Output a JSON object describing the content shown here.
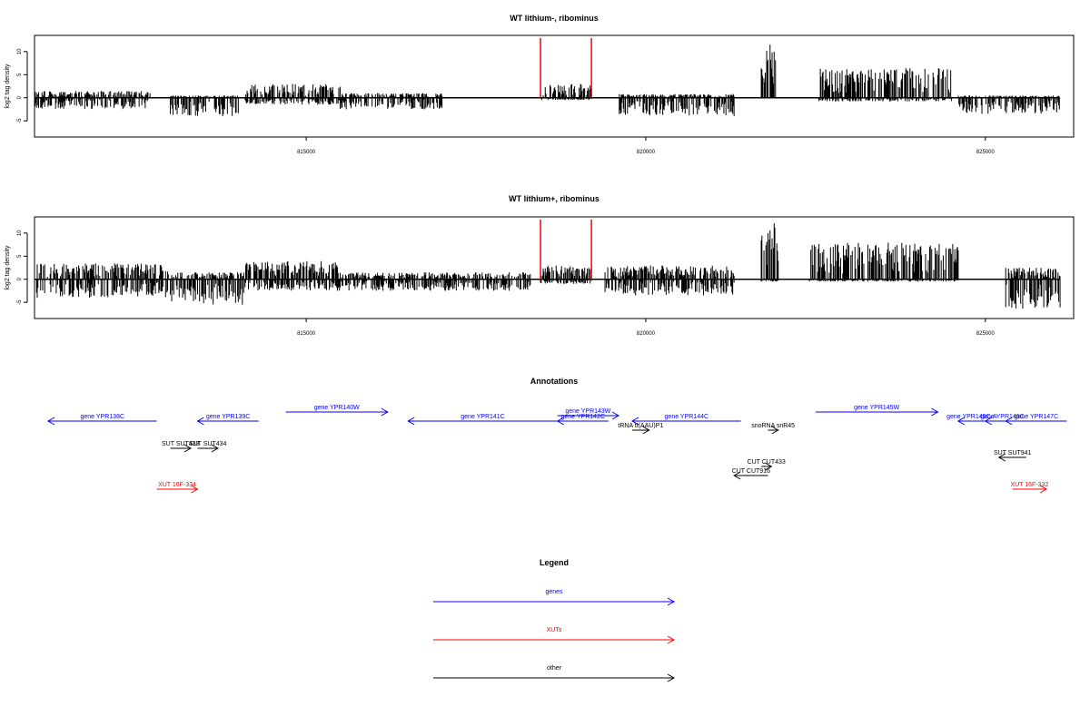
{
  "colors": {
    "gene": "#0000ff",
    "xut": "#ff0000",
    "other": "#000000",
    "marker": "#ff0000",
    "signal": "#000000"
  },
  "chart_data": [
    {
      "type": "bar",
      "title": "WT lithium-, ribominus",
      "ylabel": "log2 tag density",
      "xlim": [
        811000,
        826300
      ],
      "ylim": [
        -8.5,
        13.5
      ],
      "yticks": [
        -5,
        0,
        5,
        10
      ],
      "xticks": [
        815000,
        820000,
        825000
      ],
      "baseline": [
        811000,
        826100
      ],
      "markers_x": [
        818450,
        819200
      ],
      "segments": [
        {
          "start": 811000,
          "end": 812700,
          "pos": 1.5,
          "neg": 2.5,
          "seed": 11
        },
        {
          "start": 813000,
          "end": 814000,
          "pos": 0.5,
          "neg": 4.0,
          "seed": 12
        },
        {
          "start": 814100,
          "end": 815500,
          "pos": 3.0,
          "neg": 1.5,
          "seed": 13
        },
        {
          "start": 815500,
          "end": 817000,
          "pos": 1.0,
          "neg": 2.5,
          "seed": 14
        },
        {
          "start": 818450,
          "end": 819200,
          "pos": 3.0,
          "neg": 0.5,
          "seed": 15
        },
        {
          "start": 819600,
          "end": 821300,
          "pos": 0.8,
          "neg": 4.0,
          "seed": 16
        },
        {
          "start": 821700,
          "end": 821920,
          "pos": 11.5,
          "neg": 0,
          "seed": 17
        },
        {
          "start": 822550,
          "end": 824500,
          "pos": 6.5,
          "neg": 0.8,
          "seed": 18
        },
        {
          "start": 824600,
          "end": 826100,
          "pos": 0.5,
          "neg": 3.5,
          "seed": 19
        }
      ]
    },
    {
      "type": "bar",
      "title": "WT lithium+, ribominus",
      "ylabel": "log2 tag density",
      "xlim": [
        811000,
        826300
      ],
      "ylim": [
        -8.5,
        13.5
      ],
      "yticks": [
        -5,
        0,
        5,
        10
      ],
      "xticks": [
        815000,
        820000,
        825000
      ],
      "baseline": [
        811000,
        826100
      ],
      "markers_x": [
        818450,
        819200
      ],
      "segments": [
        {
          "start": 811000,
          "end": 813000,
          "pos": 3.5,
          "neg": 4.0,
          "seed": 21
        },
        {
          "start": 813000,
          "end": 814100,
          "pos": 1.5,
          "neg": 5.5,
          "seed": 22
        },
        {
          "start": 814100,
          "end": 815500,
          "pos": 4.0,
          "neg": 2.5,
          "seed": 23
        },
        {
          "start": 815500,
          "end": 818300,
          "pos": 1.5,
          "neg": 2.5,
          "seed": 24
        },
        {
          "start": 818450,
          "end": 819200,
          "pos": 3.0,
          "neg": 1.0,
          "seed": 25
        },
        {
          "start": 819400,
          "end": 821300,
          "pos": 3.0,
          "neg": 3.5,
          "seed": 26
        },
        {
          "start": 821700,
          "end": 821950,
          "pos": 12.5,
          "neg": 0.5,
          "seed": 27
        },
        {
          "start": 822400,
          "end": 824600,
          "pos": 8.0,
          "neg": 0.5,
          "seed": 28
        },
        {
          "start": 825300,
          "end": 826100,
          "pos": 2.5,
          "neg": 6.5,
          "seed": 29
        }
      ]
    }
  ],
  "annotations": {
    "title": "Annotations",
    "features": [
      {
        "label": "gene YPR138C",
        "kind": "gene",
        "start": 811200,
        "end": 812800,
        "strand": "-",
        "row": 0
      },
      {
        "label": "gene YPR139C",
        "kind": "gene",
        "start": 813400,
        "end": 814300,
        "strand": "-",
        "row": 0
      },
      {
        "label": "gene YPR140W",
        "kind": "gene",
        "start": 814700,
        "end": 816200,
        "strand": "+",
        "row": -1
      },
      {
        "label": "gene YPR141C",
        "kind": "gene",
        "start": 816500,
        "end": 818700,
        "strand": "-",
        "row": 0
      },
      {
        "label": "gene YPR143W",
        "kind": "gene",
        "start": 818700,
        "end": 819600,
        "strand": "+",
        "row": -0.6
      },
      {
        "label": "gene YPR142C",
        "kind": "gene",
        "start": 818700,
        "end": 819450,
        "strand": "-",
        "row": 0
      },
      {
        "label": "tRNA tI(AAU)P1",
        "kind": "other",
        "start": 819800,
        "end": 820050,
        "strand": "+",
        "row": 1
      },
      {
        "label": "gene YPR144C",
        "kind": "gene",
        "start": 819800,
        "end": 821400,
        "strand": "-",
        "row": 0
      },
      {
        "label": "snoRNA snR45",
        "kind": "other",
        "start": 821800,
        "end": 821950,
        "strand": "+",
        "row": 1
      },
      {
        "label": "gene YPR145W",
        "kind": "gene",
        "start": 822500,
        "end": 824300,
        "strand": "+",
        "row": -1
      },
      {
        "label": "gene YPR145C-A",
        "kind": "gene",
        "start": 824600,
        "end": 825000,
        "strand": "-",
        "row": 0
      },
      {
        "label": "gene YPR146C",
        "kind": "gene",
        "start": 825000,
        "end": 825500,
        "strand": "-",
        "row": 0
      },
      {
        "label": "gene YPR147C",
        "kind": "gene",
        "start": 825300,
        "end": 826200,
        "strand": "-",
        "row": 0
      },
      {
        "label": "SUT SUT433",
        "kind": "other",
        "start": 813000,
        "end": 813300,
        "strand": "+",
        "row": 3
      },
      {
        "label": "SUT SUT434",
        "kind": "other",
        "start": 813400,
        "end": 813700,
        "strand": "+",
        "row": 3
      },
      {
        "label": "CUT CUT433",
        "kind": "other",
        "start": 821700,
        "end": 821850,
        "strand": "+",
        "row": 5
      },
      {
        "label": "CUT CUT916",
        "kind": "other",
        "start": 821300,
        "end": 821800,
        "strand": "-",
        "row": 6
      },
      {
        "label": "SUT SUT941",
        "kind": "other",
        "start": 825200,
        "end": 825600,
        "strand": "-",
        "row": 4
      },
      {
        "label": "XUT 16F-334",
        "kind": "xut",
        "start": 812800,
        "end": 813400,
        "strand": "+",
        "row": 7.5
      },
      {
        "label": "XUT 16F-332",
        "kind": "xut",
        "start": 825400,
        "end": 825900,
        "strand": "+",
        "row": 7.5
      }
    ]
  },
  "legend": {
    "title": "Legend",
    "items": [
      {
        "label": "genes",
        "kind": "gene"
      },
      {
        "label": "XUTs",
        "kind": "xut"
      },
      {
        "label": "other",
        "kind": "other"
      }
    ]
  }
}
